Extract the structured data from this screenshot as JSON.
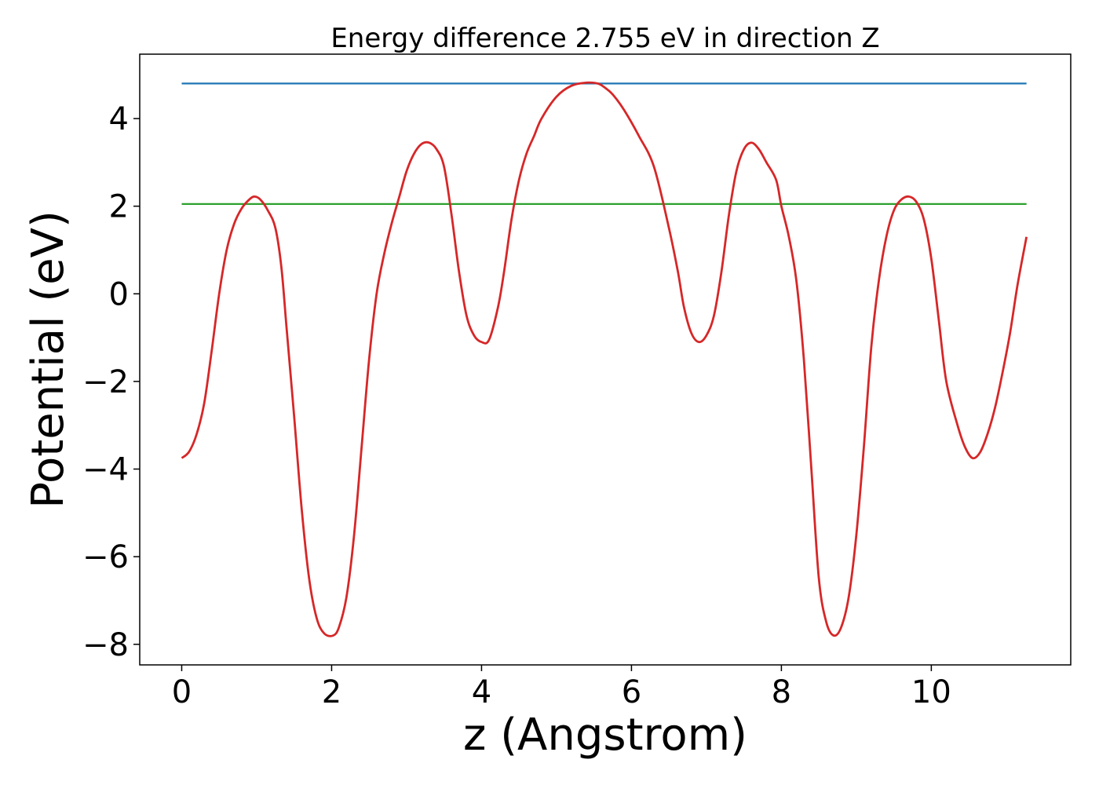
{
  "chart_data": {
    "type": "line",
    "title": "Energy difference 2.755 eV in direction Z",
    "xlabel": "z (Angstrom)",
    "ylabel": "Potential (eV)",
    "xlim": [
      -0.56,
      11.86
    ],
    "ylim": [
      -8.47,
      5.47
    ],
    "xticks": [
      0,
      2,
      4,
      6,
      8,
      10
    ],
    "xtick_labels": [
      "0",
      "2",
      "4",
      "6",
      "8",
      "10"
    ],
    "yticks": [
      -8,
      -6,
      -4,
      -2,
      0,
      2,
      4
    ],
    "ytick_labels": [
      "−8",
      "−6",
      "−4",
      "−2",
      "0",
      "2",
      "4"
    ],
    "grid": false,
    "colors": {
      "potential": "#d62728",
      "vacuum_level": "#1f77b4",
      "reference_level": "#2ca02c"
    },
    "series": [
      {
        "x": [
          0,
          0.1,
          0.2,
          0.3,
          0.4,
          0.5,
          0.6,
          0.7,
          0.8,
          0.9,
          0.97,
          1.05,
          1.15,
          1.25,
          1.33,
          1.4,
          1.5,
          1.6,
          1.7,
          1.8,
          1.9,
          2.02,
          2.1,
          2.2,
          2.3,
          2.4,
          2.5,
          2.6,
          2.7,
          2.8,
          2.9,
          3.0,
          3.1,
          3.2,
          3.3,
          3.4,
          3.5,
          3.6,
          3.7,
          3.8,
          3.9,
          4.0,
          4.1,
          4.22,
          4.3,
          4.4,
          4.5,
          4.6,
          4.7,
          4.8,
          5.0,
          5.2,
          5.4,
          5.55,
          5.65,
          5.75,
          5.9,
          6.1,
          6.3,
          6.5,
          6.62,
          6.7,
          6.8,
          6.9,
          7.0,
          7.1,
          7.2,
          7.3,
          7.4,
          7.5,
          7.6,
          7.7,
          7.8,
          7.93,
          8.0,
          8.1,
          8.2,
          8.3,
          8.4,
          8.5,
          8.6,
          8.7,
          8.8,
          8.9,
          9.0,
          9.1,
          9.2,
          9.3,
          9.4,
          9.5,
          9.6,
          9.7,
          9.8,
          9.9,
          10.0,
          10.1,
          10.2,
          10.35,
          10.45,
          10.55,
          10.65,
          10.75,
          10.85,
          10.95,
          11.05,
          11.15,
          11.27
        ],
        "y": [
          -3.75,
          -3.6,
          -3.2,
          -2.5,
          -1.3,
          0.0,
          1.0,
          1.6,
          1.95,
          2.15,
          2.22,
          2.15,
          1.9,
          1.5,
          0.6,
          -0.8,
          -2.8,
          -4.9,
          -6.5,
          -7.4,
          -7.75,
          -7.8,
          -7.6,
          -6.9,
          -5.5,
          -3.5,
          -1.5,
          0.0,
          0.9,
          1.6,
          2.2,
          2.8,
          3.2,
          3.42,
          3.45,
          3.3,
          2.9,
          1.8,
          0.5,
          -0.5,
          -0.95,
          -1.1,
          -1.05,
          -0.3,
          0.5,
          1.7,
          2.6,
          3.2,
          3.6,
          4.0,
          4.5,
          4.75,
          4.82,
          4.8,
          4.7,
          4.55,
          4.2,
          3.6,
          2.9,
          1.5,
          0.5,
          -0.3,
          -0.9,
          -1.1,
          -0.95,
          -0.5,
          0.5,
          1.8,
          2.8,
          3.3,
          3.45,
          3.3,
          3.0,
          2.6,
          2.0,
          1.3,
          0.3,
          -1.5,
          -4.0,
          -6.5,
          -7.5,
          -7.8,
          -7.6,
          -6.9,
          -5.5,
          -3.5,
          -1.2,
          0.3,
          1.3,
          1.9,
          2.15,
          2.22,
          2.1,
          1.7,
          0.8,
          -0.6,
          -2.0,
          -3.0,
          -3.5,
          -3.75,
          -3.62,
          -3.2,
          -2.6,
          -1.8,
          -0.9,
          0.2,
          1.3
        ]
      },
      {
        "x": [
          0,
          11.27
        ],
        "y": [
          4.8,
          4.8
        ]
      },
      {
        "x": [
          0,
          11.27
        ],
        "y": [
          2.05,
          2.05
        ]
      }
    ]
  }
}
